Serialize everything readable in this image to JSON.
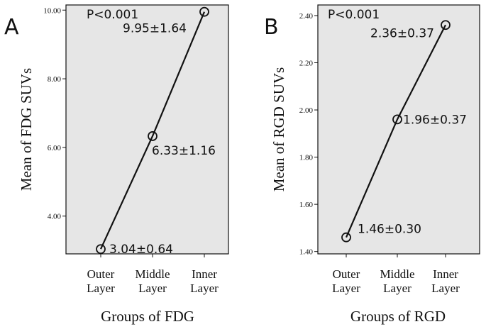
{
  "chart_data": [
    {
      "type": "line",
      "panel_label": "A",
      "title": "",
      "xlabel": "Groups of FDG",
      "ylabel": "Mean of FDG SUVs",
      "categories": [
        [
          "Outer",
          "Layer"
        ],
        [
          "Middle",
          "Layer"
        ],
        [
          "Inner",
          "Layer"
        ]
      ],
      "values": [
        3.04,
        6.33,
        9.95
      ],
      "value_labels": [
        "3.04±0.64",
        "6.33±1.16",
        "9.95±1.64"
      ],
      "annotation": "P<0.001",
      "ylim": [
        2.9,
        10.15
      ],
      "yticks": [
        4,
        6,
        8,
        10
      ],
      "ytick_labels": [
        "4.00",
        "6.00",
        "8.00",
        "10.00"
      ],
      "grid": false,
      "colors": {
        "line": "#111111",
        "plot_bg": "#e6e6e6",
        "marker_edge": "#111111"
      }
    },
    {
      "type": "line",
      "panel_label": "B",
      "title": "",
      "xlabel": "Groups of RGD",
      "ylabel": "Mean of RGD SUVs",
      "categories": [
        [
          "Outer",
          "Layer"
        ],
        [
          "Middle",
          "Layer"
        ],
        [
          "Inner",
          "Layer"
        ]
      ],
      "values": [
        1.46,
        1.96,
        2.36
      ],
      "value_labels": [
        "1.46±0.30",
        "1.96±0.37",
        "2.36±0.37"
      ],
      "annotation": "P<0.001",
      "ylim": [
        1.39,
        2.445
      ],
      "yticks": [
        1.4,
        1.6,
        1.8,
        2.0,
        2.2,
        2.4
      ],
      "ytick_labels": [
        "1.40",
        "1.60",
        "1.80",
        "2.00",
        "2.20",
        "2.40"
      ],
      "grid": false,
      "colors": {
        "line": "#111111",
        "plot_bg": "#e6e6e6",
        "marker_edge": "#111111"
      }
    }
  ]
}
